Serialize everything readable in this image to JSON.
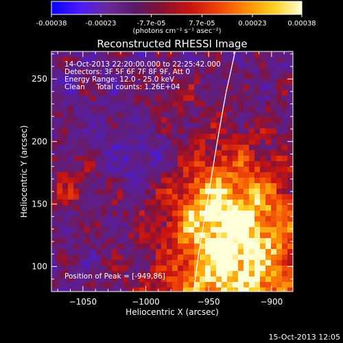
{
  "window": {
    "title": "Reconstructed RHESSI Image",
    "footer_date": "15-Oct-2013 12:05"
  },
  "colorbar": {
    "tick_labels": [
      "-0.00038",
      "-0.00023",
      "-7.7e-05",
      "7.7e-05",
      "0.00023",
      "0.00038"
    ],
    "tick_values": [
      -0.00038,
      -0.00023,
      -7.7e-05,
      7.7e-05,
      0.00023,
      0.00038
    ],
    "range": [
      -0.00038,
      0.00038
    ],
    "unit_text": "(photons cm⁻² s⁻¹ asec⁻²)",
    "colors": [
      "#0a00ff",
      "#4a1aff",
      "#6a2a9a",
      "#5a1a6a",
      "#8a1030",
      "#c81410",
      "#ee4408",
      "#ff8a08",
      "#ffd020",
      "#ffffd8"
    ]
  },
  "annotations": {
    "time_range": "14-Oct-2013 22:20:00.000 to 22:25:42.000",
    "detectors": "Detectors: 3F 5F 6F 7F 8F 9F, Att 0",
    "energy": "Energy Range: 12.0 - 25.0 keV",
    "clean": "Clean     Total counts: 1.26E+04",
    "peak": "Position of Peak = [-949,86]"
  },
  "chart_data": {
    "type": "heatmap",
    "title": "Reconstructed RHESSI Image",
    "xlabel": "Heliocentric X (arcsec)",
    "ylabel": "Heliocentric Y (arcsec)",
    "xlim": [
      -1075,
      -883
    ],
    "ylim": [
      80,
      272
    ],
    "x_ticks": [
      -1050,
      -1000,
      -950,
      -900
    ],
    "y_ticks": [
      100,
      150,
      200,
      250
    ],
    "x_tick_labels": [
      "−1050",
      "−1000",
      "−950",
      "−900"
    ],
    "y_tick_labels": [
      "100",
      "150",
      "200",
      "250"
    ],
    "peak_position": [
      -949,
      86
    ],
    "limb_curve": {
      "x": [
        -962,
        -958,
        -953,
        -948,
        -944,
        -940,
        -936,
        -932,
        -929
      ],
      "y": [
        80,
        110,
        140,
        170,
        195,
        218,
        240,
        258,
        272
      ]
    }
  }
}
